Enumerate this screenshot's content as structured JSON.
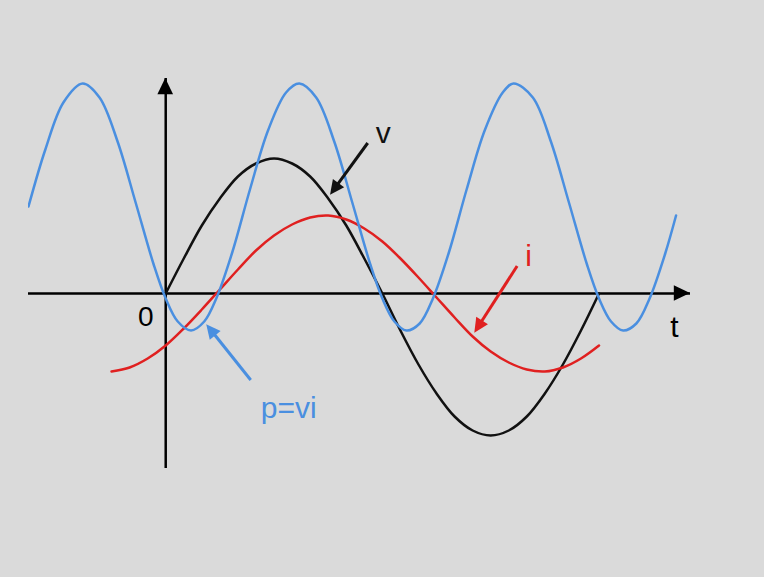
{
  "chart_data": {
    "type": "line",
    "xlabel": "t",
    "xlim": [
      -114,
      436
    ],
    "ylim": [
      -1.75,
      2.15
    ],
    "xticks": [
      0
    ],
    "yticks": [],
    "grid": false,
    "series": [
      {
        "name": "v",
        "color": "#111111",
        "x": [
          0,
          15,
          30,
          45,
          60,
          75,
          90,
          105,
          120,
          135,
          150,
          165,
          180,
          195,
          210,
          225,
          240,
          255,
          270,
          285,
          300,
          315,
          330,
          345,
          360
        ],
        "values": [
          0,
          0.35,
          0.68,
          0.95,
          1.17,
          1.3,
          1.35,
          1.3,
          1.17,
          0.95,
          0.68,
          0.35,
          0,
          -0.37,
          -0.71,
          -1.0,
          -1.23,
          -1.37,
          -1.42,
          -1.37,
          -1.23,
          -1.0,
          -0.71,
          -0.37,
          0
        ]
      },
      {
        "name": "i",
        "color": "#e02020",
        "x": [
          -45,
          -30,
          -15,
          0,
          15,
          30,
          45,
          60,
          75,
          90,
          105,
          120,
          135,
          150,
          165,
          180,
          195,
          210,
          225,
          240,
          255,
          270,
          285,
          300,
          315,
          330,
          345,
          360
        ],
        "values": [
          -0.78,
          -0.74,
          -0.65,
          -0.52,
          -0.35,
          -0.16,
          0.04,
          0.24,
          0.43,
          0.58,
          0.69,
          0.76,
          0.78,
          0.74,
          0.65,
          0.52,
          0.35,
          0.16,
          -0.04,
          -0.24,
          -0.43,
          -0.58,
          -0.69,
          -0.76,
          -0.78,
          -0.74,
          -0.65,
          -0.52
        ]
      },
      {
        "name": "p=vi",
        "color": "#4a8fe0",
        "x": [
          -114,
          -100,
          -85,
          -69,
          -55,
          -40,
          -25,
          -10,
          0,
          10,
          21,
          32,
          42,
          55,
          70,
          85,
          100,
          111,
          125,
          140,
          155,
          170,
          180,
          190,
          200,
          211,
          222,
          235,
          250,
          265,
          280,
          289,
          305,
          320,
          335,
          350,
          360,
          370,
          380,
          391,
          402,
          415,
          424
        ],
        "values": [
          0.87,
          1.44,
          1.91,
          2.1,
          1.96,
          1.52,
          0.91,
          0.29,
          -0.05,
          -0.28,
          -0.37,
          -0.28,
          -0.05,
          0.4,
          1.04,
          1.63,
          2.01,
          2.1,
          1.96,
          1.52,
          0.91,
          0.29,
          -0.05,
          -0.28,
          -0.37,
          -0.3,
          -0.05,
          0.4,
          1.04,
          1.63,
          2.01,
          2.1,
          1.96,
          1.52,
          0.91,
          0.29,
          -0.05,
          -0.28,
          -0.37,
          -0.3,
          -0.05,
          0.4,
          0.78
        ]
      }
    ]
  }
}
